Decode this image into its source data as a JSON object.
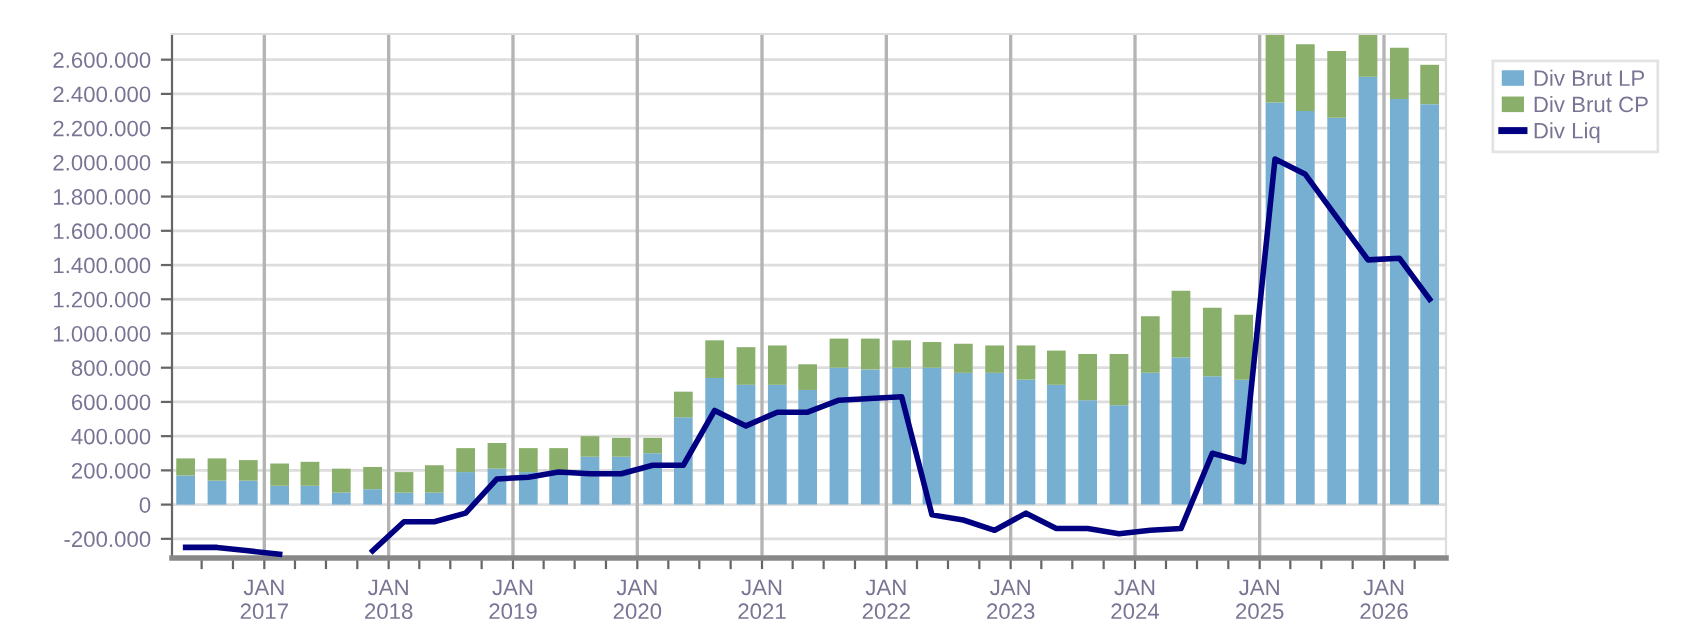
{
  "chart_data": {
    "type": "bar",
    "stacked": true,
    "x": [
      "2016-05-15",
      "2016-08-15",
      "2016-11-15",
      "2017-02-15",
      "2017-05-15",
      "2017-08-15",
      "2017-11-15",
      "2018-02-15",
      "2018-05-15",
      "2018-08-15",
      "2018-11-15",
      "2019-02-15",
      "2019-05-15",
      "2019-08-15",
      "2019-11-15",
      "2020-02-15",
      "2020-05-15",
      "2020-08-15",
      "2020-11-15",
      "2021-02-15",
      "2021-05-15",
      "2021-08-15",
      "2021-11-15",
      "2022-02-15",
      "2022-05-15",
      "2022-08-15",
      "2022-11-15",
      "2023-02-15",
      "2023-05-15",
      "2023-08-15",
      "2023-11-15",
      "2024-02-15",
      "2024-05-15",
      "2024-08-15",
      "2024-11-15",
      "2025-02-15",
      "2025-05-15",
      "2025-08-15",
      "2025-11-15",
      "2026-02-15",
      "2026-05-15"
    ],
    "series": [
      {
        "name": "Div Brut LP",
        "color": "#77afd2",
        "values": [
          170000,
          140000,
          140000,
          110000,
          110000,
          70000,
          90000,
          70000,
          70000,
          190000,
          210000,
          190000,
          200000,
          280000,
          280000,
          300000,
          510000,
          740000,
          700000,
          700000,
          670000,
          800000,
          790000,
          800000,
          800000,
          770000,
          770000,
          730000,
          700000,
          610000,
          580000,
          770000,
          860000,
          750000,
          730000,
          2350000,
          2300000,
          2260000,
          2500000,
          2370000,
          2340000
        ]
      },
      {
        "name": "Div Brut CP",
        "color": "#89af6a",
        "values": [
          100000,
          130000,
          120000,
          130000,
          140000,
          140000,
          130000,
          120000,
          160000,
          140000,
          150000,
          140000,
          130000,
          120000,
          110000,
          90000,
          150000,
          220000,
          220000,
          230000,
          150000,
          170000,
          180000,
          160000,
          150000,
          170000,
          160000,
          200000,
          200000,
          270000,
          300000,
          330000,
          390000,
          400000,
          380000,
          400000,
          390000,
          390000,
          250000,
          300000,
          230000
        ]
      },
      {
        "name": "Div Liq",
        "type": "line",
        "color": "#000080",
        "values": [
          -250000,
          -250000,
          -270000,
          -290000,
          null,
          null,
          -270000,
          -100000,
          -100000,
          -50000,
          150000,
          160000,
          190000,
          180000,
          180000,
          230000,
          230000,
          550000,
          460000,
          540000,
          540000,
          610000,
          620000,
          630000,
          -60000,
          -90000,
          -150000,
          -50000,
          -140000,
          -140000,
          -170000,
          -150000,
          -140000,
          300000,
          250000,
          2020000,
          1930000,
          1680000,
          1430000,
          1440000,
          1200000
        ]
      }
    ],
    "ylim": [
      -312000,
      2750000
    ],
    "yticks": [
      {
        "value": -200000,
        "label": "-200.000"
      },
      {
        "value": 0,
        "label": "0"
      },
      {
        "value": 200000,
        "label": "200.000"
      },
      {
        "value": 400000,
        "label": "400.000"
      },
      {
        "value": 600000,
        "label": "600.000"
      },
      {
        "value": 800000,
        "label": "800.000"
      },
      {
        "value": 1000000,
        "label": "1.000.000"
      },
      {
        "value": 1200000,
        "label": "1.200.000"
      },
      {
        "value": 1400000,
        "label": "1.400.000"
      },
      {
        "value": 1600000,
        "label": "1.600.000"
      },
      {
        "value": 1800000,
        "label": "1.800.000"
      },
      {
        "value": 2000000,
        "label": "2.000.000"
      },
      {
        "value": 2200000,
        "label": "2.200.000"
      },
      {
        "value": 2400000,
        "label": "2.400.000"
      },
      {
        "value": 2600000,
        "label": "2.600.000"
      }
    ],
    "xlim": [
      "2016-04-05",
      "2026-07-02"
    ],
    "xticks": [
      {
        "value": "2016-07-01",
        "label": null
      },
      {
        "value": "2016-10-01",
        "label": null
      },
      {
        "value": "2017-01-01",
        "label": "JAN\n2017"
      },
      {
        "value": "2017-04-01",
        "label": null
      },
      {
        "value": "2017-07-01",
        "label": null
      },
      {
        "value": "2017-10-01",
        "label": null
      },
      {
        "value": "2018-01-01",
        "label": "JAN\n2018"
      },
      {
        "value": "2018-04-01",
        "label": null
      },
      {
        "value": "2018-07-01",
        "label": null
      },
      {
        "value": "2018-10-01",
        "label": null
      },
      {
        "value": "2019-01-01",
        "label": "JAN\n2019"
      },
      {
        "value": "2019-04-01",
        "label": null
      },
      {
        "value": "2019-07-01",
        "label": null
      },
      {
        "value": "2019-10-01",
        "label": null
      },
      {
        "value": "2020-01-01",
        "label": "JAN\n2020"
      },
      {
        "value": "2020-04-01",
        "label": null
      },
      {
        "value": "2020-07-01",
        "label": null
      },
      {
        "value": "2020-10-01",
        "label": null
      },
      {
        "value": "2021-01-01",
        "label": "JAN\n2021"
      },
      {
        "value": "2021-04-01",
        "label": null
      },
      {
        "value": "2021-07-01",
        "label": null
      },
      {
        "value": "2021-10-01",
        "label": null
      },
      {
        "value": "2022-01-01",
        "label": "JAN\n2022"
      },
      {
        "value": "2022-04-01",
        "label": null
      },
      {
        "value": "2022-07-01",
        "label": null
      },
      {
        "value": "2022-10-01",
        "label": null
      },
      {
        "value": "2023-01-01",
        "label": "JAN\n2023"
      },
      {
        "value": "2023-04-01",
        "label": null
      },
      {
        "value": "2023-07-01",
        "label": null
      },
      {
        "value": "2023-10-01",
        "label": null
      },
      {
        "value": "2024-01-01",
        "label": "JAN\n2024"
      },
      {
        "value": "2024-04-01",
        "label": null
      },
      {
        "value": "2024-07-01",
        "label": null
      },
      {
        "value": "2024-10-01",
        "label": null
      },
      {
        "value": "2025-01-01",
        "label": "JAN\n2025"
      },
      {
        "value": "2025-04-01",
        "label": null
      },
      {
        "value": "2025-07-01",
        "label": null
      },
      {
        "value": "2025-10-01",
        "label": null
      },
      {
        "value": "2026-01-01",
        "label": "JAN\n2026"
      },
      {
        "value": "2026-04-01",
        "label": null
      }
    ],
    "grid": true,
    "legend": "top right"
  }
}
